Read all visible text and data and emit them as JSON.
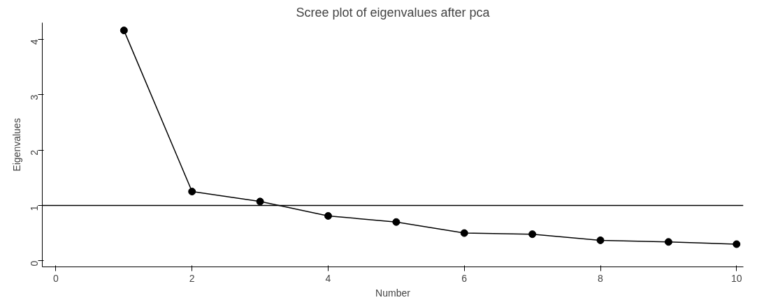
{
  "chart_data": {
    "type": "line",
    "title": "Scree plot of eigenvalues after pca",
    "xlabel": "Number",
    "ylabel": "Eigenvalues",
    "x": [
      1,
      2,
      3,
      4,
      5,
      6,
      7,
      8,
      9,
      10
    ],
    "series": [
      {
        "color": "#000000",
        "values": [
          4.16,
          1.25,
          1.07,
          0.81,
          0.7,
          0.5,
          0.48,
          0.37,
          0.34,
          0.3
        ]
      }
    ],
    "xlim": [
      -0.2,
      10.1
    ],
    "ylim": [
      -0.11,
      4.3
    ],
    "xticks": [
      0,
      2,
      4,
      6,
      8,
      10
    ],
    "yticks": [
      0,
      1,
      2,
      3,
      4
    ],
    "ref_lines": [
      {
        "axis": "y",
        "value": 1,
        "color": "#000000"
      }
    ],
    "marker": "circle",
    "line_style": "solid",
    "grid": false
  }
}
